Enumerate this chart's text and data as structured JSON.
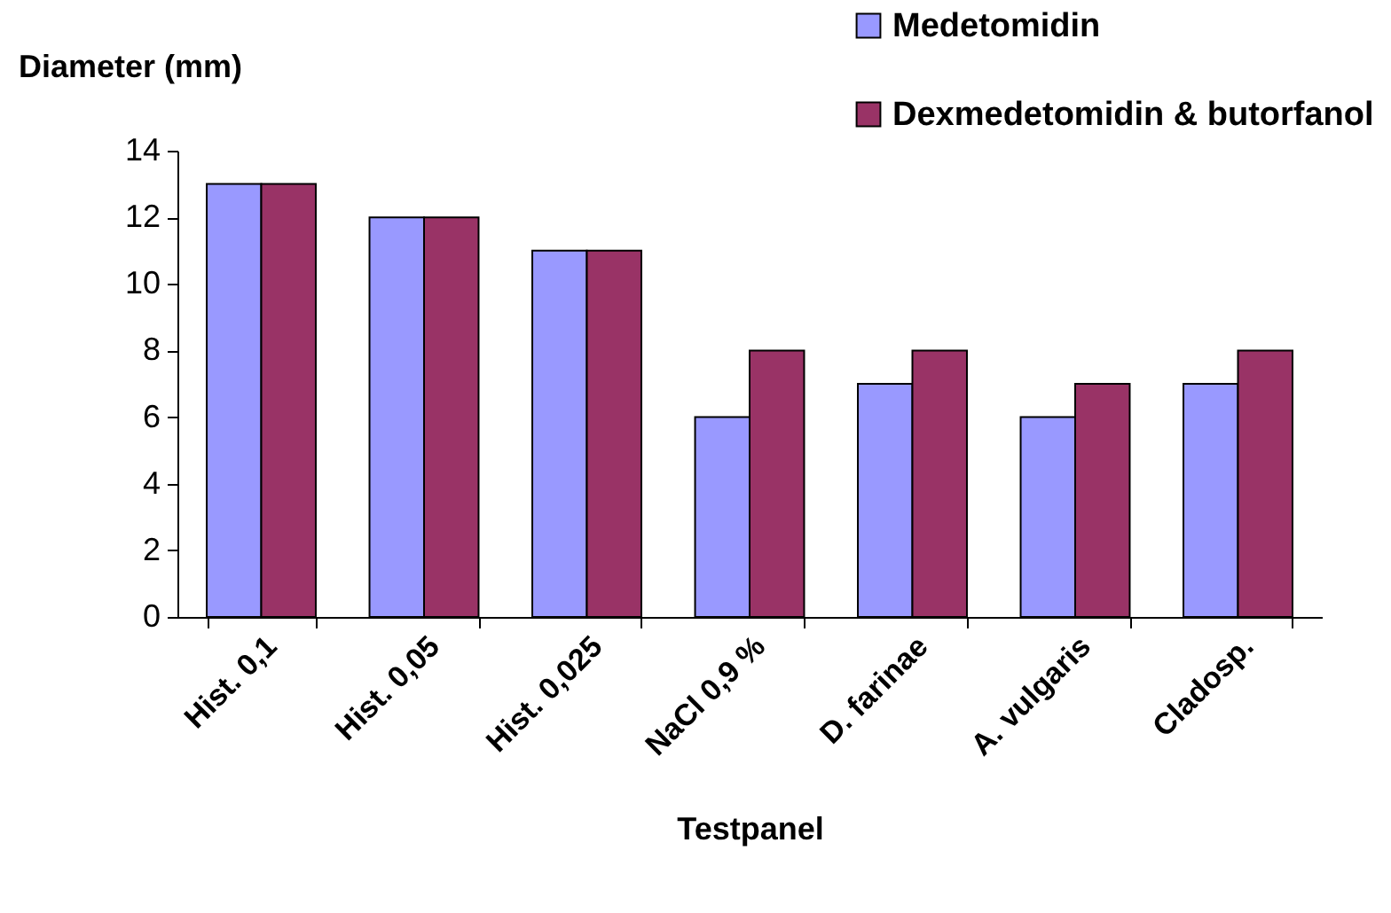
{
  "chart_data": {
    "type": "bar",
    "xlabel": "Testpanel",
    "ylabel": "Diameter  (mm)",
    "categories": [
      "Hist. 0,1",
      "Hist. 0,05",
      "Hist. 0,025",
      "NaCl 0,9 %",
      "D. farinae",
      "A. vulgaris",
      "Cladosp."
    ],
    "series": [
      {
        "name": "Medetomidin",
        "color": "#9999ff",
        "values": [
          13,
          12,
          11,
          6,
          7,
          6,
          7
        ]
      },
      {
        "name": "Dexmedetomidin & butorfanol",
        "color": "#993366",
        "values": [
          13,
          12,
          11,
          8,
          8,
          7,
          8
        ]
      }
    ],
    "ylim": [
      0,
      14
    ],
    "yticks": [
      0,
      2,
      4,
      6,
      8,
      10,
      12,
      14
    ],
    "grid": false,
    "legend": "top right"
  }
}
